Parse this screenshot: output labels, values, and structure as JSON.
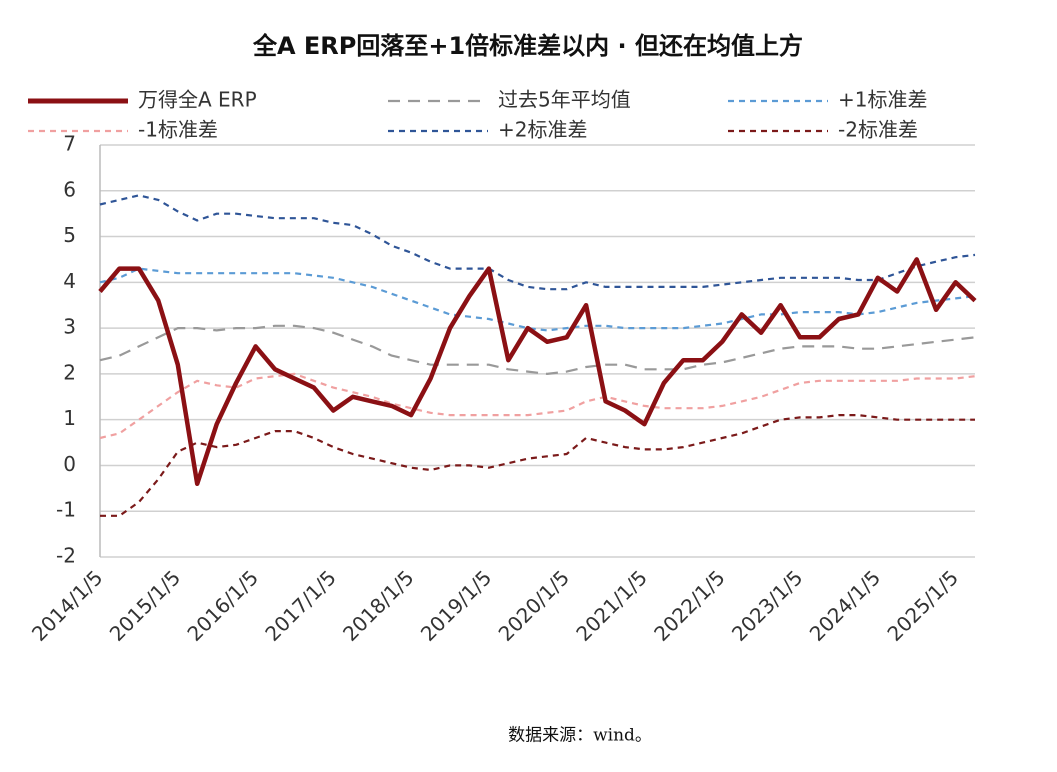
{
  "chart_data": {
    "type": "line",
    "title": "全A ERP回落至+1倍标准差以内 · 但还在均值上方",
    "categories": [
      "2014/1/5",
      null,
      null,
      null,
      "2015/1/5",
      null,
      null,
      null,
      "2016/1/5",
      null,
      null,
      null,
      "2017/1/5",
      null,
      null,
      null,
      "2018/1/5",
      null,
      null,
      null,
      "2019/1/5",
      null,
      null,
      null,
      "2020/1/5",
      null,
      null,
      null,
      "2021/1/5",
      null,
      null,
      null,
      "2022/1/5",
      null,
      null,
      null,
      "2023/1/5",
      null,
      null,
      null,
      "2024/1/5",
      null,
      null,
      null,
      "2025/1/5",
      null
    ],
    "series": [
      {
        "name": "万得全A  ERP",
        "color": "#8b1014",
        "style": "solid",
        "values": [
          3.8,
          4.3,
          4.3,
          3.6,
          2.2,
          -0.4,
          0.9,
          1.8,
          2.6,
          2.1,
          1.9,
          1.7,
          1.2,
          1.5,
          1.4,
          1.3,
          1.1,
          1.9,
          3.0,
          3.7,
          4.3,
          2.3,
          3.0,
          2.7,
          2.8,
          3.5,
          1.4,
          1.2,
          0.9,
          1.8,
          2.3,
          2.3,
          2.7,
          3.3,
          2.9,
          3.5,
          2.8,
          2.8,
          3.2,
          3.3,
          4.1,
          3.8,
          4.5,
          3.4,
          4.0,
          3.6
        ]
      },
      {
        "name": "过去5年平均值",
        "color": "#999999",
        "style": "dashed",
        "values": [
          2.3,
          2.4,
          2.6,
          2.8,
          3.0,
          3.0,
          2.95,
          3.0,
          3.0,
          3.05,
          3.05,
          3.0,
          2.9,
          2.75,
          2.6,
          2.4,
          2.3,
          2.2,
          2.2,
          2.2,
          2.2,
          2.1,
          2.05,
          2.0,
          2.05,
          2.15,
          2.2,
          2.2,
          2.1,
          2.1,
          2.1,
          2.2,
          2.25,
          2.35,
          2.45,
          2.55,
          2.6,
          2.6,
          2.6,
          2.55,
          2.55,
          2.6,
          2.65,
          2.7,
          2.75,
          2.8
        ]
      },
      {
        "name": "+1标准差",
        "color": "#5b9bd5",
        "style": "dashed",
        "values": [
          4.0,
          4.1,
          4.3,
          4.25,
          4.2,
          4.2,
          4.2,
          4.2,
          4.2,
          4.2,
          4.2,
          4.15,
          4.1,
          4.0,
          3.9,
          3.75,
          3.6,
          3.45,
          3.3,
          3.25,
          3.2,
          3.1,
          3.0,
          2.95,
          3.0,
          3.05,
          3.05,
          3.0,
          3.0,
          3.0,
          3.0,
          3.05,
          3.1,
          3.2,
          3.3,
          3.3,
          3.35,
          3.35,
          3.35,
          3.3,
          3.35,
          3.45,
          3.55,
          3.6,
          3.65,
          3.7
        ]
      },
      {
        "name": "-1标准差",
        "color": "#f0a0a0",
        "style": "dashed",
        "values": [
          0.6,
          0.7,
          1.0,
          1.3,
          1.6,
          1.85,
          1.75,
          1.7,
          1.9,
          1.95,
          2.0,
          1.85,
          1.7,
          1.6,
          1.5,
          1.35,
          1.25,
          1.15,
          1.1,
          1.1,
          1.1,
          1.1,
          1.1,
          1.15,
          1.2,
          1.4,
          1.5,
          1.4,
          1.3,
          1.25,
          1.25,
          1.25,
          1.3,
          1.4,
          1.5,
          1.65,
          1.8,
          1.85,
          1.85,
          1.85,
          1.85,
          1.85,
          1.9,
          1.9,
          1.9,
          1.95
        ]
      },
      {
        "name": "+2标准差",
        "color": "#2f5597",
        "style": "dashed",
        "values": [
          5.7,
          5.8,
          5.9,
          5.8,
          5.55,
          5.35,
          5.5,
          5.5,
          5.45,
          5.4,
          5.4,
          5.4,
          5.3,
          5.25,
          5.05,
          4.8,
          4.65,
          4.45,
          4.3,
          4.3,
          4.3,
          4.05,
          3.9,
          3.85,
          3.85,
          4.0,
          3.9,
          3.9,
          3.9,
          3.9,
          3.9,
          3.9,
          3.95,
          4.0,
          4.05,
          4.1,
          4.1,
          4.1,
          4.1,
          4.05,
          4.05,
          4.2,
          4.35,
          4.45,
          4.55,
          4.6
        ]
      },
      {
        "name": "-2标准差",
        "color": "#7b1a1a",
        "style": "dashed",
        "values": [
          -1.1,
          -1.1,
          -0.8,
          -0.3,
          0.3,
          0.5,
          0.4,
          0.45,
          0.6,
          0.75,
          0.75,
          0.6,
          0.4,
          0.25,
          0.15,
          0.05,
          -0.05,
          -0.1,
          0.0,
          0.0,
          -0.05,
          0.05,
          0.15,
          0.2,
          0.25,
          0.6,
          0.5,
          0.4,
          0.35,
          0.35,
          0.4,
          0.5,
          0.6,
          0.7,
          0.85,
          1.0,
          1.05,
          1.05,
          1.1,
          1.1,
          1.05,
          1.0,
          1.0,
          1.0,
          1.0,
          1.0
        ]
      }
    ],
    "ylim": [
      -2,
      7
    ],
    "yticks": [
      -2,
      -1,
      0,
      1,
      2,
      3,
      4,
      5,
      6,
      7
    ],
    "grid": true
  },
  "source": "数据来源：wind。"
}
